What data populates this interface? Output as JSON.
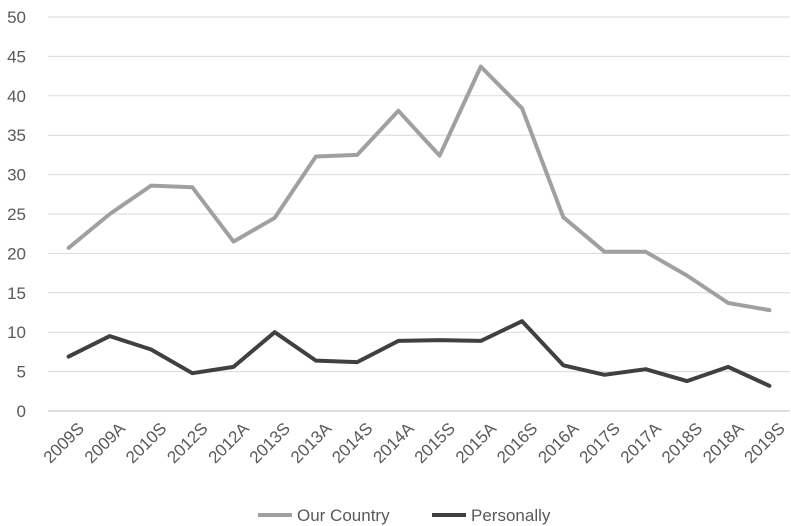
{
  "chart_data": {
    "type": "line",
    "categories": [
      "2009S",
      "2009A",
      "2010S",
      "2012S",
      "2012A",
      "2013S",
      "2013A",
      "2014S",
      "2014A",
      "2015S",
      "2015A",
      "2016S",
      "2016A",
      "2017S",
      "2017A",
      "2018S",
      "2018A",
      "2019S"
    ],
    "series": [
      {
        "name": "Our Country",
        "color": "#a0a0a0",
        "values": [
          20.7,
          25.0,
          28.6,
          28.4,
          21.5,
          24.5,
          32.3,
          32.5,
          38.1,
          32.4,
          43.7,
          38.4,
          24.6,
          20.2,
          20.2,
          17.2,
          13.7,
          12.8
        ]
      },
      {
        "name": "Personally",
        "color": "#404040",
        "values": [
          6.9,
          9.5,
          7.8,
          4.8,
          5.6,
          10.0,
          6.4,
          6.2,
          8.9,
          9.0,
          8.9,
          11.4,
          5.8,
          4.6,
          5.3,
          3.8,
          5.6,
          3.2
        ]
      }
    ],
    "yticks": [
      "0",
      "5",
      "10",
      "15",
      "20",
      "25",
      "30",
      "35",
      "40",
      "45",
      "50"
    ],
    "ylim": [
      0,
      50
    ],
    "grid": true,
    "legend": "bottom-center",
    "title": "",
    "xlabel": "",
    "ylabel": ""
  }
}
